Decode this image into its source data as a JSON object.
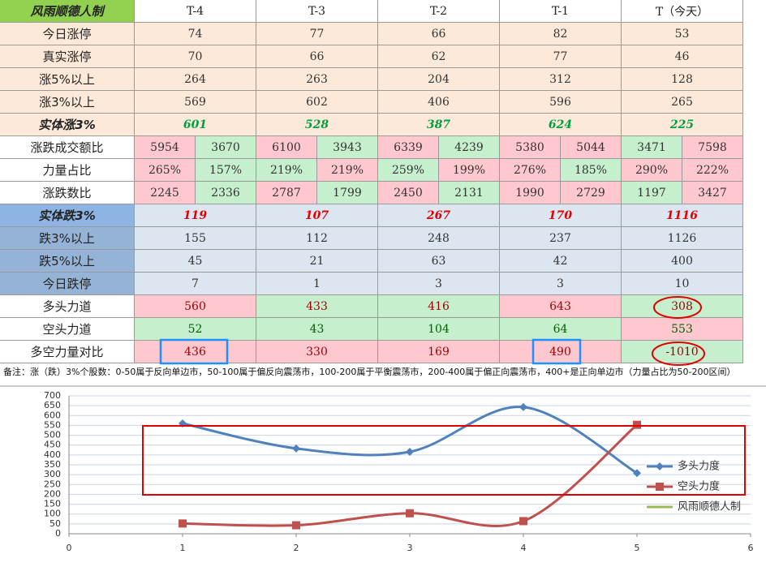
{
  "table": {
    "header": [
      "风雨顺德人制",
      "T-4",
      "T-3",
      "T-2",
      "T-1",
      "T（今天）"
    ],
    "rows": [
      {
        "label": "今日涨停",
        "values": [
          74,
          77,
          66,
          82,
          53
        ],
        "label_fill": "#fde9d9",
        "fill": "#fde9d9"
      },
      {
        "label": "真实涨停",
        "values": [
          70,
          66,
          62,
          77,
          46
        ],
        "label_fill": "#fde9d9",
        "fill": "#fde9d9"
      },
      {
        "label": "涨5%以上",
        "values": [
          264,
          263,
          204,
          312,
          128
        ],
        "label_fill": "#fde9d9",
        "fill": "#fde9d9"
      },
      {
        "label": "涨3%以上",
        "values": [
          569,
          602,
          406,
          596,
          265
        ],
        "label_fill": "#fde9d9",
        "fill": "#fde9d9"
      },
      {
        "label": "实体涨3%",
        "values": [
          601,
          528,
          387,
          624,
          225
        ],
        "label_fill": "#fde9d9",
        "fill": "#fde9d9",
        "text_color": "#00a040",
        "emphasis": true
      },
      {
        "label": "涨跌成交额比",
        "values": [
          [
            5954,
            3670
          ],
          [
            6100,
            3943
          ],
          [
            6339,
            4239
          ],
          [
            5380,
            5044
          ],
          [
            3471,
            7598
          ]
        ],
        "label_fill": "#ffffff",
        "fills": [
          [
            "#ffc7ce",
            "#c6efce"
          ],
          [
            "#ffc7ce",
            "#c6efce"
          ],
          [
            "#ffc7ce",
            "#c6efce"
          ],
          [
            "#ffc7ce",
            "#ffc7ce"
          ],
          [
            "#c6efce",
            "#ffc7ce"
          ]
        ]
      },
      {
        "label": "力量占比",
        "values": [
          [
            "265%",
            "157%"
          ],
          [
            "219%",
            "219%"
          ],
          [
            "259%",
            "199%"
          ],
          [
            "276%",
            "185%"
          ],
          [
            "290%",
            "222%"
          ]
        ],
        "label_fill": "#ffffff",
        "fills": [
          [
            "#ffc7ce",
            "#c6efce"
          ],
          [
            "#c6efce",
            "#ffc7ce"
          ],
          [
            "#c6efce",
            "#ffc7ce"
          ],
          [
            "#ffc7ce",
            "#c6efce"
          ],
          [
            "#ffc7ce",
            "#ffc7ce"
          ]
        ]
      },
      {
        "label": "涨跌数比",
        "values": [
          [
            2245,
            2336
          ],
          [
            2787,
            1799
          ],
          [
            2450,
            2131
          ],
          [
            1990,
            2729
          ],
          [
            1197,
            3427
          ]
        ],
        "label_fill": "#ffffff",
        "fills": [
          [
            "#ffc7ce",
            "#c6efce"
          ],
          [
            "#ffc7ce",
            "#c6efce"
          ],
          [
            "#ffc7ce",
            "#c6efce"
          ],
          [
            "#ffc7ce",
            "#ffc7ce"
          ],
          [
            "#c6efce",
            "#ffc7ce"
          ]
        ]
      },
      {
        "label": "实体跌3%",
        "values": [
          119,
          107,
          267,
          170,
          1116
        ],
        "label_fill": "#8db4e2",
        "fill": "#dce6f1",
        "text_color": "#e00000",
        "emphasis": true
      },
      {
        "label": "跌3%以上",
        "values": [
          155,
          112,
          248,
          237,
          1126
        ],
        "label_fill": "#95b3d7",
        "fill": "#dce6f1"
      },
      {
        "label": "跌5%以上",
        "values": [
          45,
          21,
          63,
          42,
          400
        ],
        "label_fill": "#95b3d7",
        "fill": "#dce6f1"
      },
      {
        "label": "今日跌停",
        "values": [
          7,
          1,
          3,
          3,
          10
        ],
        "label_fill": "#95b3d7",
        "fill": "#dce6f1"
      },
      {
        "label": "多头力道",
        "values": [
          560,
          433,
          416,
          643,
          308
        ],
        "label_fill": "#ffffff",
        "fills": [
          "#ffc7ce",
          "#c6efce",
          "#c6efce",
          "#ffc7ce",
          "#c6efce"
        ],
        "text_color": "#9c0006"
      },
      {
        "label": "空头力道",
        "values": [
          52,
          43,
          104,
          64,
          553
        ],
        "label_fill": "#ffffff",
        "fills": [
          "#c6efce",
          "#c6efce",
          "#c6efce",
          "#c6efce",
          "#ffc7ce"
        ],
        "text_color": "#006100"
      },
      {
        "label": "多空力量对比",
        "values": [
          436,
          330,
          169,
          490,
          -1010
        ],
        "label_fill": "#ffffff",
        "fills": [
          "#ffc7ce",
          "#ffc7ce",
          "#ffc7ce",
          "#ffc7ce",
          "#c6efce"
        ],
        "text_color": "#9c0006"
      }
    ]
  },
  "note": "备注：涨（跌）3%个股数：0-50属于反向单边市，50-100属于偏反向震荡市，100-200属于平衡震荡市，200-400属于偏正向震荡市，400+是正向单边市（力量占比为50-200区间）",
  "chart_data": {
    "type": "line",
    "x": [
      1,
      2,
      3,
      4,
      5
    ],
    "series": [
      {
        "name": "多头力度",
        "color": "#4f81bd",
        "marker": "diamond",
        "values": [
          560,
          433,
          416,
          643,
          308
        ]
      },
      {
        "name": "空头力度",
        "color": "#c0504d",
        "marker": "square",
        "values": [
          52,
          43,
          104,
          64,
          553
        ]
      },
      {
        "name": "风雨顺德人制",
        "color": "#9bbb59",
        "values": [
          null,
          null,
          null,
          null,
          null
        ]
      }
    ],
    "xlim": [
      0,
      6
    ],
    "xticks": [
      0,
      1,
      2,
      3,
      4,
      5,
      6
    ],
    "ylim": [
      0,
      700
    ],
    "yticks": [
      0,
      50,
      100,
      150,
      200,
      250,
      300,
      350,
      400,
      450,
      500,
      550,
      600,
      650,
      700
    ],
    "grid": true,
    "legend": "right"
  }
}
